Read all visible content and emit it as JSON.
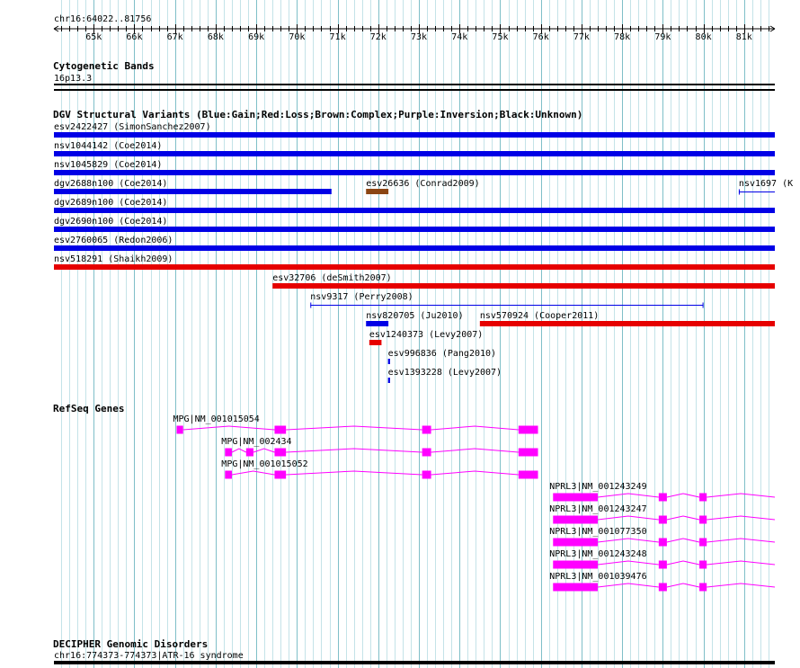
{
  "ruler": {
    "position": "chr16:64022..81756",
    "ticks": [
      {
        "pos": 65000,
        "label": "65k"
      },
      {
        "pos": 66000,
        "label": "66k"
      },
      {
        "pos": 67000,
        "label": "67k"
      },
      {
        "pos": 68000,
        "label": "68k"
      },
      {
        "pos": 69000,
        "label": "69k"
      },
      {
        "pos": 70000,
        "label": "70k"
      },
      {
        "pos": 71000,
        "label": "71k"
      },
      {
        "pos": 72000,
        "label": "72k"
      },
      {
        "pos": 73000,
        "label": "73k"
      },
      {
        "pos": 74000,
        "label": "74k"
      },
      {
        "pos": 75000,
        "label": "75k"
      },
      {
        "pos": 76000,
        "label": "76k"
      },
      {
        "pos": 77000,
        "label": "77k"
      },
      {
        "pos": 78000,
        "label": "78k"
      },
      {
        "pos": 79000,
        "label": "79k"
      },
      {
        "pos": 80000,
        "label": "80k"
      },
      {
        "pos": 81000,
        "label": "81k"
      }
    ]
  },
  "cytobands": {
    "title": "Cytogenetic Bands",
    "band": "16p13.3"
  },
  "dgv": {
    "title": "DGV Structural Variants (Blue:Gain;Red:Loss;Brown:Complex;Purple:Inversion;Black:Unknown)",
    "colors": {
      "gain": "#0000e6",
      "loss": "#e60000",
      "complex": "#8b4513"
    },
    "features": [
      {
        "label": "esv2422427 (SimonSanchez2007)",
        "start": 64022,
        "end": 81756,
        "type": "gain",
        "style": "thick",
        "row": 0
      },
      {
        "label": "nsv1044142 (Coe2014)",
        "start": 64022,
        "end": 81756,
        "type": "gain",
        "style": "thick",
        "row": 1
      },
      {
        "label": "nsv1045829 (Coe2014)",
        "start": 64022,
        "end": 81756,
        "type": "gain",
        "style": "thick",
        "row": 2
      },
      {
        "label": "dgv2688n100 (Coe2014)",
        "start": 64022,
        "end": 70850,
        "type": "gain",
        "style": "thick",
        "row": 3
      },
      {
        "label": "esv26636 (Conrad2009)",
        "start": 71700,
        "end": 72250,
        "type": "complex",
        "style": "thick",
        "row": 3
      },
      {
        "label": "nsv1697 (K",
        "start": 80870,
        "end": 81756,
        "type": "gain",
        "style": "thin",
        "row": 3
      },
      {
        "label": "dgv2689n100 (Coe2014)",
        "start": 64022,
        "end": 81756,
        "type": "gain",
        "style": "thick",
        "row": 4
      },
      {
        "label": "dgv2690n100 (Coe2014)",
        "start": 64022,
        "end": 81756,
        "type": "gain",
        "style": "thick",
        "row": 5
      },
      {
        "label": "esv2760065 (Redon2006)",
        "start": 64022,
        "end": 81756,
        "type": "gain",
        "style": "thick",
        "row": 6
      },
      {
        "label": "nsv518291 (Shaikh2009)",
        "start": 64022,
        "end": 81756,
        "type": "loss",
        "style": "thick",
        "row": 7
      },
      {
        "label": "esv32706 (deSmith2007)",
        "start": 69400,
        "end": 81756,
        "type": "loss",
        "style": "thick",
        "row": 8
      },
      {
        "label": "nsv9317 (Perry2008)",
        "start": 70330,
        "end": 80000,
        "type": "gain",
        "style": "thin",
        "row": 9
      },
      {
        "label": "nsv820705 (Ju2010)",
        "start": 71700,
        "end": 72250,
        "type": "gain",
        "style": "thick",
        "row": 10
      },
      {
        "label": "nsv570924 (Cooper2011)",
        "start": 74500,
        "end": 81756,
        "type": "loss",
        "style": "thick",
        "row": 10
      },
      {
        "label": "esv1240373 (Levy2007)",
        "start": 71780,
        "end": 72080,
        "type": "loss",
        "style": "thick",
        "row": 11
      },
      {
        "label": "esv996836 (Pang2010)",
        "start": 72240,
        "end": 72290,
        "type": "gain",
        "style": "tick",
        "row": 12
      },
      {
        "label": "esv1393228 (Levy2007)",
        "start": 72240,
        "end": 72290,
        "type": "gain",
        "style": "tick",
        "row": 13
      }
    ]
  },
  "refseq": {
    "title": "RefSeq Genes",
    "color": "#ff00ff",
    "transcripts": [
      {
        "label": "MPG|NM_001015054",
        "row": 0,
        "start": 67040,
        "end": 75930,
        "exons": [
          [
            67040,
            67200
          ],
          [
            69450,
            69730
          ],
          [
            73080,
            73300
          ],
          [
            75450,
            75930
          ]
        ]
      },
      {
        "label": "MPG|NM_002434",
        "row": 1,
        "start": 68230,
        "end": 75930,
        "exons": [
          [
            68230,
            68400
          ],
          [
            68750,
            68930
          ],
          [
            69450,
            69730
          ],
          [
            73080,
            73300
          ],
          [
            75450,
            75930
          ]
        ]
      },
      {
        "label": "MPG|NM_001015052",
        "row": 2,
        "start": 68230,
        "end": 75930,
        "exons": [
          [
            68230,
            68400
          ],
          [
            69450,
            69730
          ],
          [
            73080,
            73300
          ],
          [
            75450,
            75930
          ]
        ]
      },
      {
        "label": "NPRL3|NM_001243249",
        "row": 3,
        "start": 76300,
        "end": 81756,
        "exons": [
          [
            76300,
            77400
          ],
          [
            78900,
            79100
          ],
          [
            79900,
            80080
          ]
        ]
      },
      {
        "label": "NPRL3|NM_001243247",
        "row": 4,
        "start": 76300,
        "end": 81756,
        "exons": [
          [
            76300,
            77400
          ],
          [
            78900,
            79100
          ],
          [
            79900,
            80080
          ]
        ]
      },
      {
        "label": "NPRL3|NM_001077350",
        "row": 5,
        "start": 76300,
        "end": 81756,
        "exons": [
          [
            76300,
            77400
          ],
          [
            78900,
            79100
          ],
          [
            79900,
            80080
          ]
        ]
      },
      {
        "label": "NPRL3|NM_001243248",
        "row": 6,
        "start": 76300,
        "end": 81756,
        "exons": [
          [
            76300,
            77400
          ],
          [
            78900,
            79100
          ],
          [
            79900,
            80080
          ]
        ]
      },
      {
        "label": "NPRL3|NM_001039476",
        "row": 7,
        "start": 76300,
        "end": 81756,
        "exons": [
          [
            76300,
            77400
          ],
          [
            78900,
            79100
          ],
          [
            79900,
            80080
          ]
        ]
      }
    ]
  },
  "decipher": {
    "title": "DECIPHER Genomic Disorders",
    "label": "chr16:774373-774373|ATR-16 syndrome"
  }
}
